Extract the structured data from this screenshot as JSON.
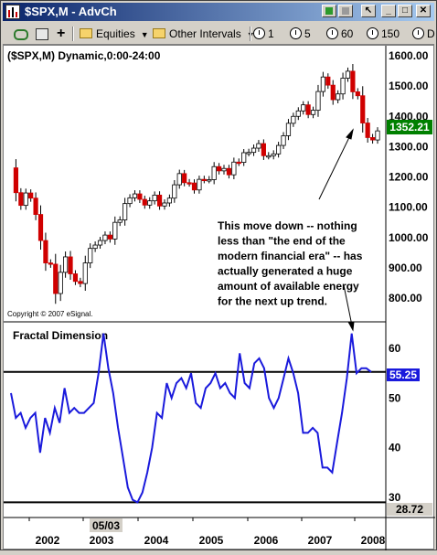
{
  "window": {
    "title": "$SPX,M - AdvCh"
  },
  "toolbar": {
    "equities": "Equities",
    "other_intervals": "Other Intervals",
    "intervals": [
      "1",
      "5",
      "60",
      "150",
      "D"
    ]
  },
  "chart": {
    "header": "($SPX,M) Dynamic,0:00-24:00",
    "copyright": "Copyright © 2007 eSignal.",
    "annotation": [
      "This move down -- nothing",
      "less than \"the end of the",
      "modern financial era\" -- has",
      "actually generated a huge",
      "amount of available energy",
      "for the next up trend."
    ],
    "price_axis": [
      "1600.00",
      "1500.00",
      "1400.00",
      "1300.00",
      "1200.00",
      "1100.00",
      "1000.00",
      "900.00",
      "800.00"
    ],
    "last_price": "1352.21",
    "indicator_title": "Fractal Dimension",
    "indicator_axis": [
      "60",
      "50",
      "40",
      "30"
    ],
    "indicator_value": "55.25",
    "indicator_low_label": "28.72",
    "date_marker": "05/03",
    "x_years": [
      "2002",
      "2003",
      "2004",
      "2005",
      "2006",
      "2007",
      "2008"
    ],
    "colors": {
      "up": "#000000",
      "down": "#d00000",
      "indicator": "#1a1adc",
      "last_price_bg": "#008000",
      "indicator_badge": "#1a1adc"
    }
  },
  "chart_data": [
    {
      "type": "candlestick",
      "title": "($SPX,M) Dynamic,0:00-24:00",
      "ylim": [
        760,
        1620
      ],
      "ylabel": "",
      "last_value": 1352.21,
      "x_ticks": [
        "2002",
        "2003",
        "2004",
        "2005",
        "2006",
        "2007",
        "2008"
      ],
      "close": [
        1230,
        1148,
        1106,
        1147,
        1130,
        1076,
        990,
        916,
        912,
        815,
        885,
        936,
        880,
        855,
        848,
        916,
        964,
        975,
        990,
        1008,
        995,
        1050,
        1058,
        1112,
        1131,
        1144,
        1126,
        1107,
        1121,
        1140,
        1104,
        1114,
        1130,
        1174,
        1211,
        1181,
        1180,
        1157,
        1192,
        1191,
        1191,
        1234,
        1220,
        1228,
        1207,
        1249,
        1248,
        1280,
        1281,
        1295,
        1310,
        1270,
        1270,
        1276,
        1304,
        1336,
        1377,
        1400,
        1418,
        1438,
        1406,
        1420,
        1482,
        1530,
        1503,
        1455,
        1474,
        1526,
        1549,
        1481,
        1468,
        1378,
        1330,
        1322,
        1352
      ]
    },
    {
      "type": "line",
      "title": "Fractal Dimension",
      "ylim": [
        28.72,
        66
      ],
      "ylabel": "",
      "reference_lines": [
        55.25,
        29
      ],
      "last_value": 55.25,
      "values": [
        51,
        46,
        47,
        44,
        46,
        47,
        39,
        46,
        43,
        48,
        45,
        52,
        47,
        48,
        47,
        47,
        48,
        49,
        55,
        63,
        56,
        51,
        44,
        38,
        32,
        29.5,
        29,
        31,
        35,
        40,
        47,
        46,
        53,
        50,
        53,
        54,
        52,
        55,
        49,
        48,
        52,
        53,
        55,
        52,
        53,
        51,
        50,
        59,
        53,
        52,
        57,
        58,
        56,
        50,
        48,
        50,
        54,
        58,
        55,
        51,
        43,
        43,
        44,
        43,
        36,
        36,
        35,
        41,
        47,
        54,
        63,
        55,
        56,
        56,
        55.25
      ]
    }
  ]
}
